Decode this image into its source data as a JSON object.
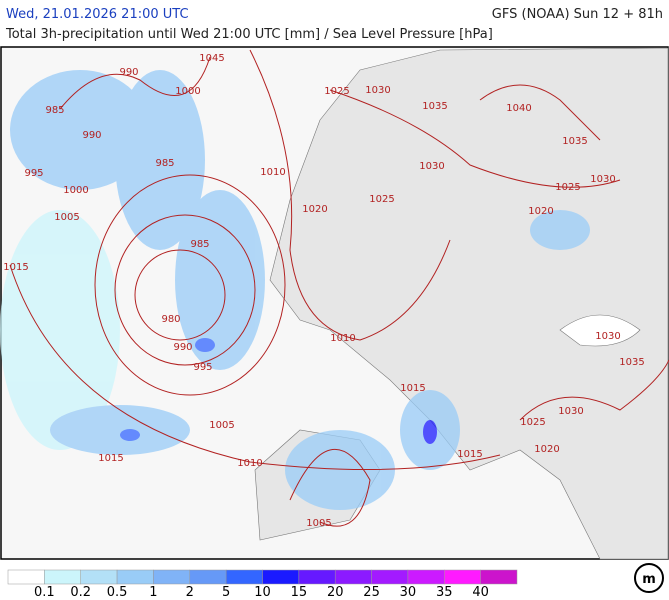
{
  "header": {
    "datetime": "Wed, 21.01.2026 21:00 UTC",
    "model": "GFS (NOAA) Sun 12 + 81h",
    "subtitle": "Total 3h-precipitation until Wed 21:00 UTC [mm] / Sea Level Pressure [hPa]"
  },
  "isobar_labels": [
    "1045",
    "990",
    "1000",
    "985",
    "990",
    "985",
    "995",
    "1000",
    "1005",
    "1015",
    "985",
    "980",
    "990",
    "995",
    "1025",
    "1030",
    "1035",
    "1040",
    "1035",
    "1030",
    "1010",
    "1025",
    "1030",
    "1025",
    "1020",
    "1020",
    "1010",
    "1030",
    "1035",
    "1015",
    "1030",
    "1025",
    "1005",
    "1020",
    "1015",
    "1015",
    "1010",
    "1005"
  ],
  "legend": {
    "colors": [
      "#ffffff",
      "#ccf5fb",
      "#b3e0f7",
      "#99ccf7",
      "#80b3f7",
      "#6699f7",
      "#3366ff",
      "#1a1aff",
      "#6619ff",
      "#8c1aff",
      "#a31aff",
      "#cc1aff",
      "#ff1aff",
      "#cc14cc"
    ],
    "labels": [
      "0.1",
      "0.2",
      "0.5",
      "1",
      "2",
      "5",
      "10",
      "15",
      "20",
      "25",
      "30",
      "35",
      "40"
    ]
  },
  "logo": "m"
}
